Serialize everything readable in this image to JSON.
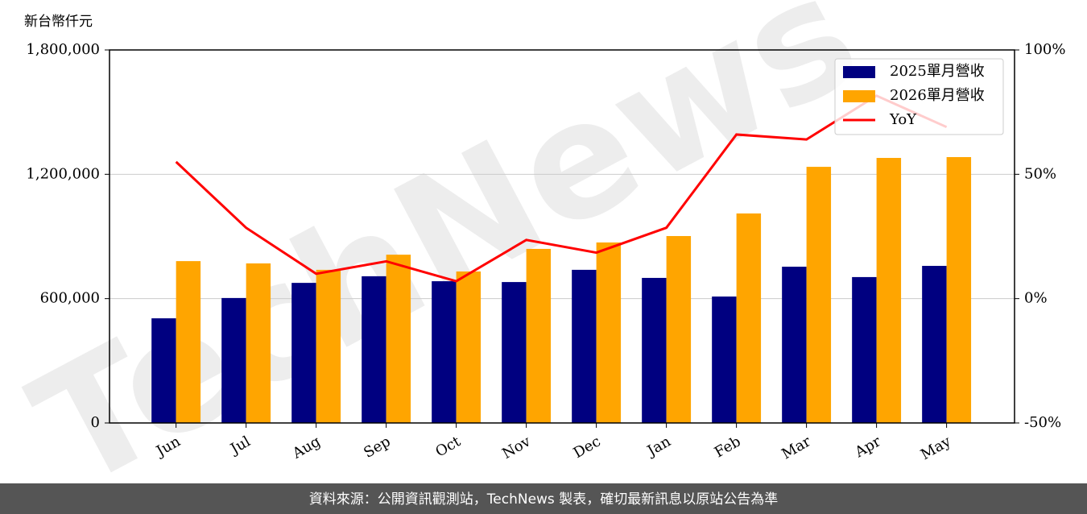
{
  "chart_data": {
    "type": "bar_line",
    "y_label": "新台幣仟元",
    "watermark": "TechNews",
    "source": "資料來源：公開資訊觀測站，TechNews 製表，確切最新訊息以原站公告為準",
    "categories": [
      "Jun",
      "Jul",
      "Aug",
      "Sep",
      "Oct",
      "Nov",
      "Dec",
      "Jan",
      "Feb",
      "Mar",
      "Apr",
      "May"
    ],
    "series": [
      {
        "name": "2025單月營收",
        "type": "bar",
        "color": "#000080",
        "values": [
          505000,
          603000,
          676000,
          708000,
          684000,
          680000,
          739000,
          700000,
          610000,
          754000,
          704000,
          758000
        ]
      },
      {
        "name": "2026單月營收",
        "type": "bar",
        "color": "#ffa500",
        "values": [
          781000,
          770000,
          739000,
          812000,
          731000,
          840000,
          871000,
          902000,
          1011000,
          1236000,
          1279000,
          1283000
        ]
      },
      {
        "name": "YoY",
        "type": "line",
        "axis": "y2",
        "color": "#ff0000",
        "values": [
          55,
          28.5,
          10,
          15,
          7,
          23.6,
          18.5,
          28.5,
          66,
          64,
          81.6,
          69
        ]
      }
    ],
    "ylim": [
      0,
      1800000
    ],
    "yticks": [
      0,
      {
        "value": 600000,
        "label": "600,000"
      },
      {
        "value": 1200000,
        "label": "1,200,000"
      },
      {
        "value": 1800000,
        "label": "1,800,000"
      }
    ],
    "y2lim": [
      -50,
      100
    ],
    "y2ticks": [
      {
        "value": -50,
        "label": "-50%"
      },
      {
        "value": 0,
        "label": "0%"
      },
      {
        "value": 50,
        "label": "50%"
      },
      {
        "value": 100,
        "label": "100%"
      }
    ],
    "grid": true,
    "legend": "upper right"
  }
}
